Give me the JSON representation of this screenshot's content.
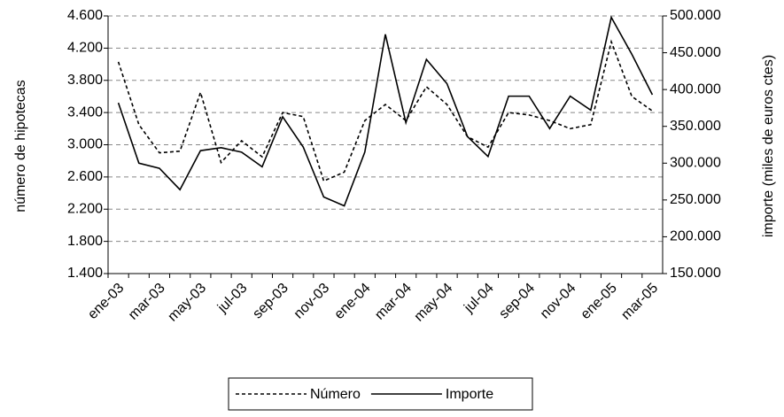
{
  "chart_data": {
    "type": "line",
    "y_label": "número de hipotecas",
    "y2_label": "importe (miles de euros ctes)",
    "categories": [
      "ene-03",
      null,
      "mar-03",
      null,
      "may-03",
      null,
      "jul-03",
      null,
      "sep-03",
      null,
      "nov-03",
      null,
      "ene-04",
      null,
      "mar-04",
      null,
      "may-04",
      null,
      "jul-04",
      null,
      "sep-04",
      null,
      "nov-04",
      null,
      "ene-05",
      null,
      "mar-05"
    ],
    "series": [
      {
        "name": "Número",
        "color": "#000000",
        "line_style": "dashed",
        "values": [
          4030,
          3250,
          2900,
          2920,
          3650,
          2780,
          3050,
          2850,
          3400,
          3350,
          2550,
          2660,
          3300,
          3500,
          3300,
          3720,
          3500,
          3100,
          2970,
          3400,
          3370,
          3300,
          3200,
          3250,
          4280,
          3600,
          3420
        ]
      },
      {
        "name": "Importe",
        "color": "#000000",
        "line_style": "solid",
        "axis": "y2",
        "values": [
          382000,
          300000,
          293000,
          264000,
          317000,
          321000,
          315000,
          295000,
          363000,
          322000,
          254000,
          242000,
          315000,
          475000,
          355000,
          441000,
          408000,
          336000,
          309000,
          391000,
          391000,
          347000,
          391000,
          372000,
          498000,
          448000,
          393000
        ]
      }
    ],
    "ylim": [
      1400,
      4600
    ],
    "yticks": [
      {
        "value": 1400,
        "label": "1.400"
      },
      {
        "value": 1800,
        "label": "1.800"
      },
      {
        "value": 2200,
        "label": "2.200"
      },
      {
        "value": 2600,
        "label": "2.600"
      },
      {
        "value": 3000,
        "label": "3.000"
      },
      {
        "value": 3400,
        "label": "3.400"
      },
      {
        "value": 3800,
        "label": "3.800"
      },
      {
        "value": 4200,
        "label": "4.200"
      },
      {
        "value": 4600,
        "label": "4.600"
      }
    ],
    "y2lim": [
      150000,
      500000
    ],
    "y2ticks": [
      {
        "value": 150000,
        "label": "150.000"
      },
      {
        "value": 200000,
        "label": "200.000"
      },
      {
        "value": 250000,
        "label": "250.000"
      },
      {
        "value": 300000,
        "label": "300.000"
      },
      {
        "value": 350000,
        "label": "350.000"
      },
      {
        "value": 400000,
        "label": "400.000"
      },
      {
        "value": 450000,
        "label": "450.000"
      },
      {
        "value": 500000,
        "label": "500.000"
      }
    ],
    "grid": true,
    "legend": "bottom"
  }
}
